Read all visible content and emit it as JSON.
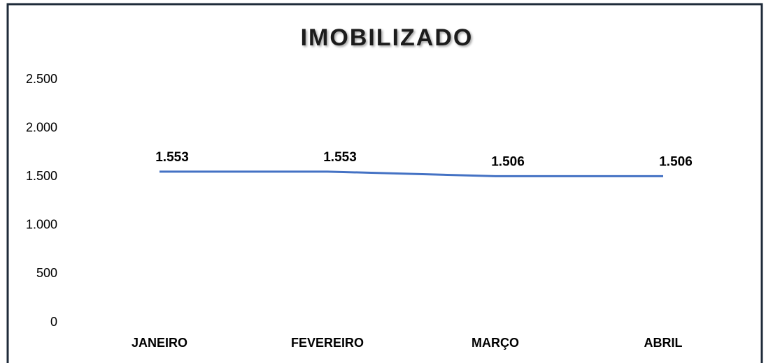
{
  "chart_data": {
    "type": "line",
    "title": "IMOBILIZADO",
    "categories": [
      "JANEIRO",
      "FEVEREIRO",
      "MARÇO",
      "ABRIL"
    ],
    "series": [
      {
        "color": "#4472c4",
        "values": [
          1553,
          1553,
          1506,
          1506
        ],
        "value_labels": [
          "1.553",
          "1.553",
          "1.506",
          "1.506"
        ]
      }
    ],
    "ylim": [
      0,
      2500
    ],
    "yticks": [
      0,
      500,
      {
        "value": 1000,
        "label": "1.000"
      },
      {
        "value": 1500,
        "label": "1.500"
      },
      {
        "value": 2000,
        "label": "2.000"
      },
      {
        "value": 2500,
        "label": "2.500"
      }
    ],
    "grid": false
  }
}
